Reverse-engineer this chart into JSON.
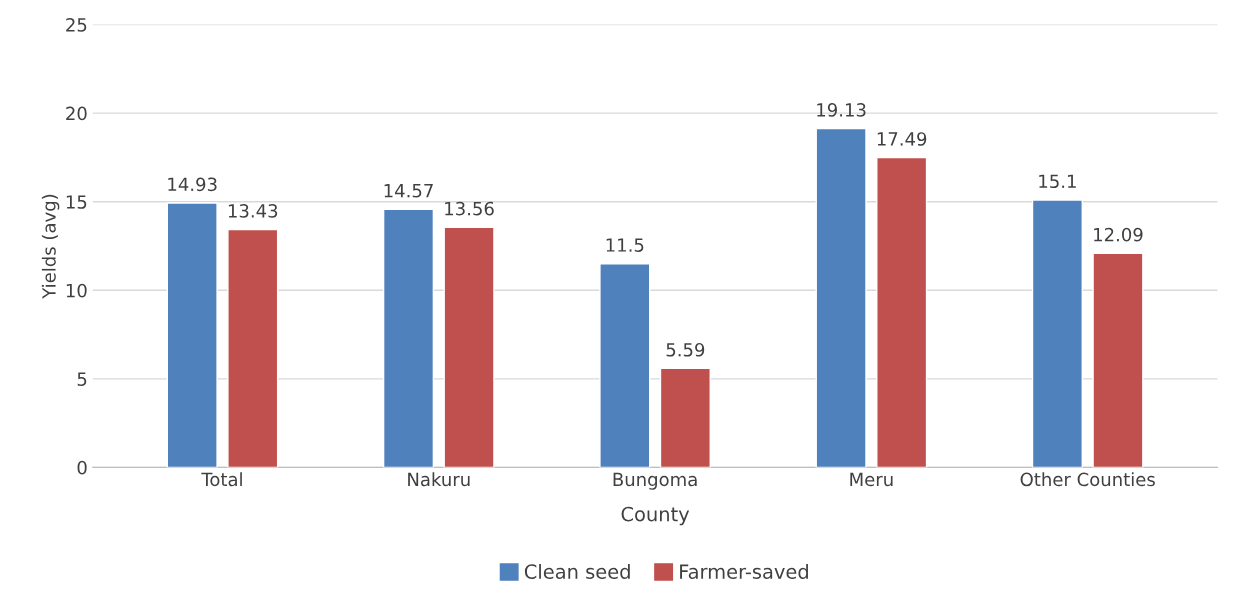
{
  "chart_data": {
    "type": "bar",
    "xlabel": "County",
    "ylabel": "Yields (avg)",
    "categories": [
      "Total",
      "Nakuru",
      "Bungoma",
      "Meru",
      "Other Counties"
    ],
    "series": [
      {
        "name": "Clean seed",
        "color": "#4f81bd",
        "values": [
          14.93,
          14.57,
          11.5,
          19.13,
          15.1
        ]
      },
      {
        "name": "Farmer-saved",
        "color": "#c0504d",
        "values": [
          13.43,
          13.56,
          5.59,
          17.49,
          12.09
        ]
      }
    ],
    "ylim": [
      0,
      25
    ],
    "yticks": [
      0,
      5,
      10,
      15,
      20,
      25
    ],
    "grid": "y",
    "legend": "bottom",
    "data_labels": true
  }
}
